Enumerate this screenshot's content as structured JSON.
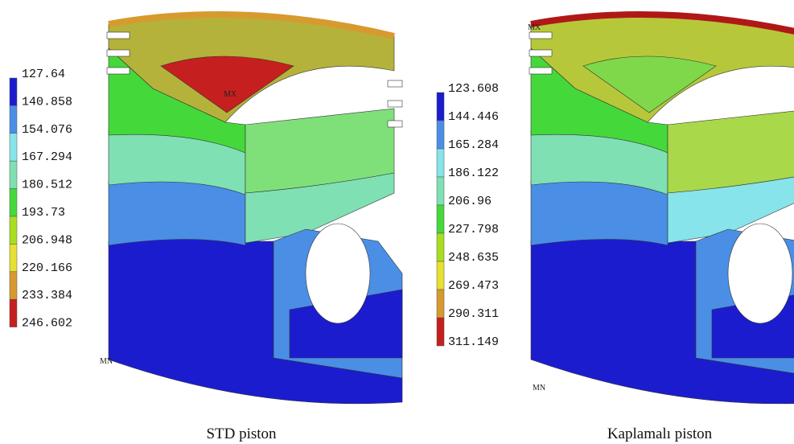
{
  "panels": [
    {
      "legend": {
        "labels": [
          "127.64",
          "140.858",
          "154.076",
          "167.294",
          "180.512",
          "193.73",
          "206.948",
          "220.166",
          "233.384",
          "246.602"
        ]
      },
      "max_label": "MX",
      "min_label": "MN",
      "caption": "STD piston"
    },
    {
      "legend": {
        "labels": [
          "123.608",
          "144.446",
          "165.284",
          "186.122",
          "206.96",
          "227.798",
          "248.635",
          "269.473",
          "290.311",
          "311.149"
        ]
      },
      "max_label": "MX",
      "min_label": "MN",
      "caption": "Kaplamalı piston"
    }
  ]
}
